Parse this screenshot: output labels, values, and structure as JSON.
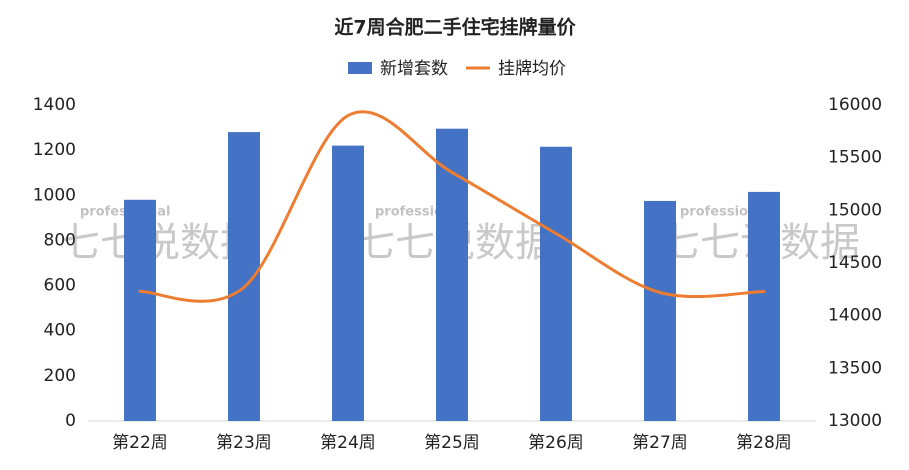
{
  "chart_data": {
    "type": "bar-line",
    "title": "近7周合肥二手住宅挂牌量价",
    "categories": [
      "第22周",
      "第23周",
      "第24周",
      "第25周",
      "第26周",
      "第27周",
      "第28周"
    ],
    "series": [
      {
        "name": "新增套数",
        "color": "#4472c4",
        "type": "bar",
        "values": [
          980,
          1280,
          1220,
          1295,
          1215,
          975,
          1015
        ]
      },
      {
        "name": "挂牌均价",
        "color": "#ed7d31",
        "type": "line",
        "axis": "y2",
        "values": [
          14230,
          14270,
          15900,
          15360,
          14780,
          14220,
          14230
        ]
      }
    ],
    "ylim": [
      0,
      1400
    ],
    "yticks": [
      0,
      200,
      400,
      600,
      800,
      1000,
      1200,
      1400
    ],
    "y2lim": [
      13000,
      16000
    ],
    "y2ticks": [
      13000,
      13500,
      14000,
      14500,
      15000,
      15500,
      16000
    ],
    "legend": "top",
    "grid": false,
    "watermark": {
      "top": "professional",
      "main": "七七说数据"
    }
  }
}
